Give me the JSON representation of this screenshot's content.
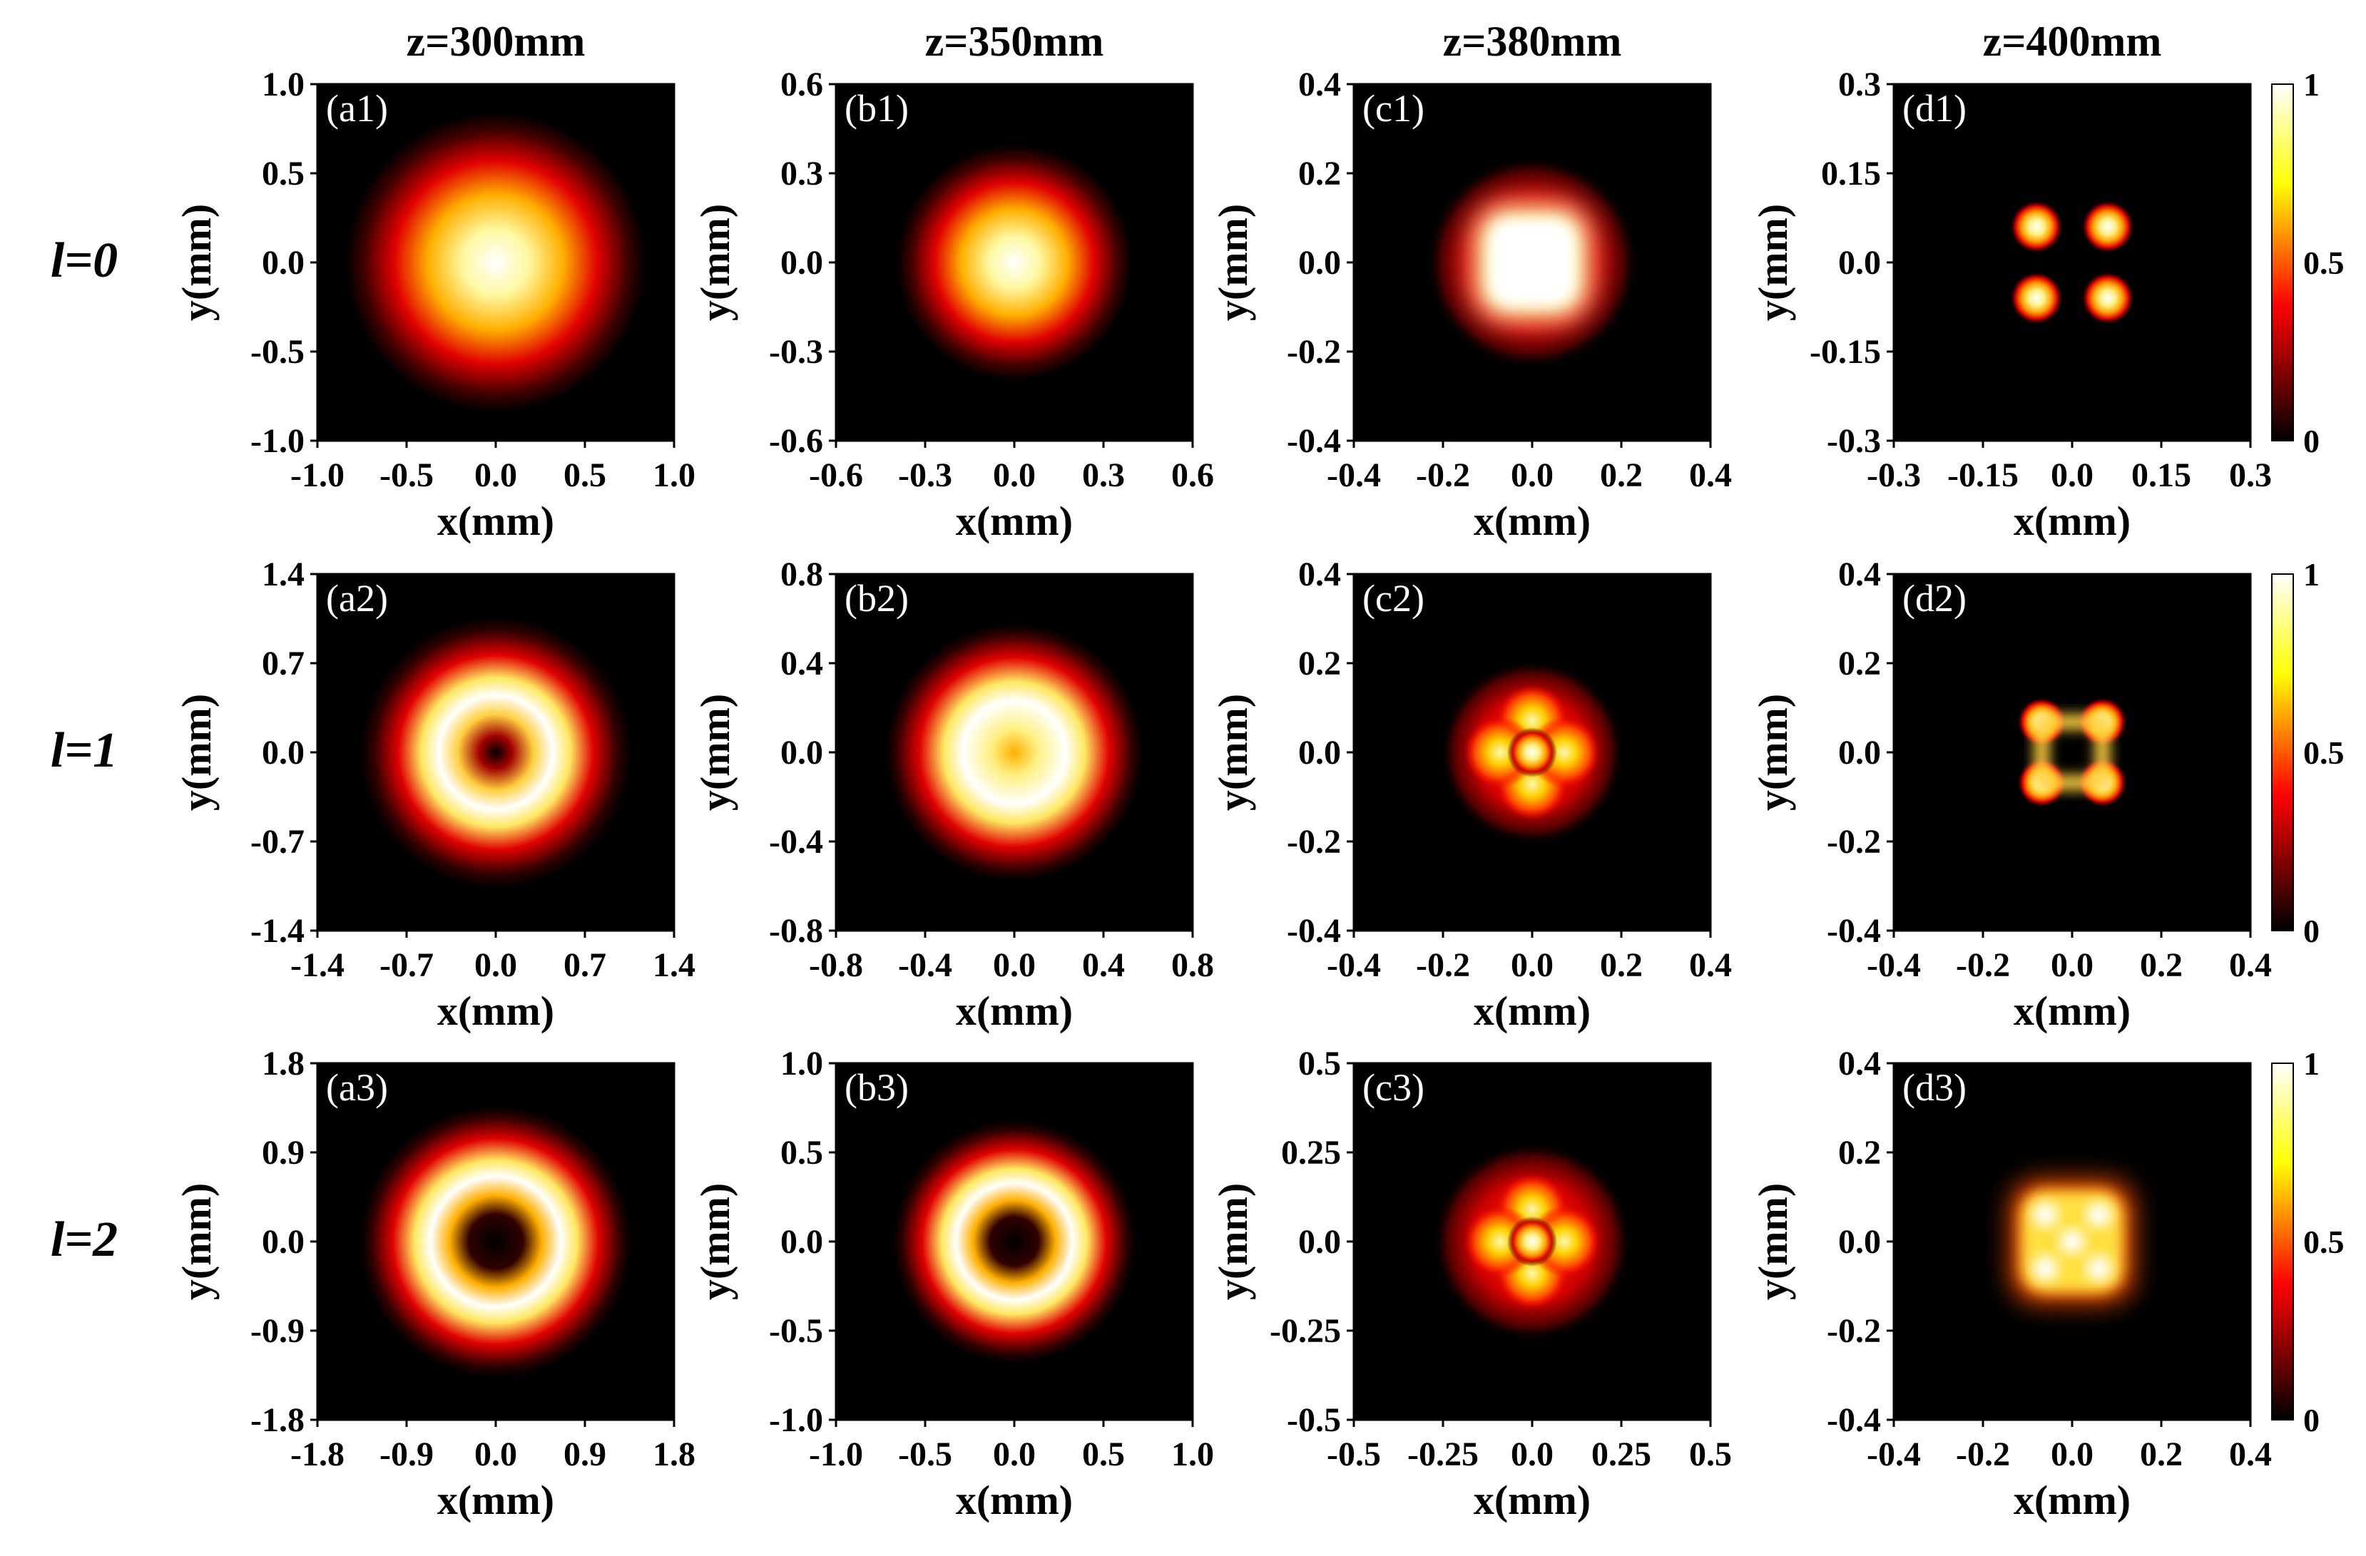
{
  "chart_data": {
    "type": "heatmap",
    "column_titles": [
      "z=300mm",
      "z=350mm",
      "z=380mm",
      "z=400mm"
    ],
    "row_labels": [
      "l=0",
      "l=1",
      "l=2"
    ],
    "xlabel": "x(mm)",
    "ylabel": "y(mm)",
    "colorbar": {
      "ticks": [
        "1",
        "0.5",
        "0"
      ],
      "range": [
        0,
        1
      ],
      "colormap": "hot"
    },
    "colors": {
      "black": "#000000",
      "red": "#e00000",
      "yellow": "#ffff60",
      "white": "#ffffff"
    },
    "panels": [
      {
        "label": "(a1)",
        "row": 0,
        "col": 0,
        "pattern": "gaussian",
        "extent": 1.0,
        "ticks": [
          "-1.0",
          "-0.5",
          "0.0",
          "0.5",
          "1.0"
        ],
        "x_ticks": [
          "-1.0",
          "-0.5",
          "0.0",
          "0.5",
          "1.0"
        ],
        "y_ticks": [
          "1.0",
          "0.5",
          "0.0",
          "-0.5",
          "-1.0"
        ]
      },
      {
        "label": "(b1)",
        "row": 0,
        "col": 1,
        "pattern": "gaussian",
        "extent": 0.6,
        "x_ticks": [
          "-0.6",
          "-0.3",
          "0.0",
          "0.3",
          "0.6"
        ],
        "y_ticks": [
          "0.6",
          "0.3",
          "0.0",
          "-0.3",
          "-0.6"
        ]
      },
      {
        "label": "(c1)",
        "row": 0,
        "col": 2,
        "pattern": "square",
        "extent": 0.4,
        "x_ticks": [
          "-0.4",
          "-0.2",
          "0.0",
          "0.2",
          "0.4"
        ],
        "y_ticks": [
          "0.4",
          "0.2",
          "0.0",
          "-0.2",
          "-0.4"
        ]
      },
      {
        "label": "(d1)",
        "row": 0,
        "col": 3,
        "pattern": "four-spots",
        "extent": 0.3,
        "x_ticks": [
          "-0.3",
          "-0.15",
          "0.0",
          "0.15",
          "0.3"
        ],
        "y_ticks": [
          "0.3",
          "0.15",
          "0.0",
          "-0.15",
          "-0.3"
        ]
      },
      {
        "label": "(a2)",
        "row": 1,
        "col": 0,
        "pattern": "ring",
        "extent": 1.4,
        "x_ticks": [
          "-1.4",
          "-0.7",
          "0.0",
          "0.7",
          "1.4"
        ],
        "y_ticks": [
          "1.4",
          "0.7",
          "0.0",
          "-0.7",
          "-1.4"
        ]
      },
      {
        "label": "(b2)",
        "row": 1,
        "col": 1,
        "pattern": "ring-filled",
        "extent": 0.8,
        "x_ticks": [
          "-0.8",
          "-0.4",
          "0.0",
          "0.4",
          "0.8"
        ],
        "y_ticks": [
          "0.8",
          "0.4",
          "0.0",
          "-0.4",
          "-0.8"
        ]
      },
      {
        "label": "(c2)",
        "row": 1,
        "col": 2,
        "pattern": "cross-blob",
        "extent": 0.4,
        "x_ticks": [
          "-0.4",
          "-0.2",
          "0.0",
          "0.2",
          "0.4"
        ],
        "y_ticks": [
          "0.4",
          "0.2",
          "0.0",
          "-0.2",
          "-0.4"
        ]
      },
      {
        "label": "(d2)",
        "row": 1,
        "col": 3,
        "pattern": "four-spots-close",
        "extent": 0.4,
        "x_ticks": [
          "-0.4",
          "-0.2",
          "0.0",
          "0.2",
          "0.4"
        ],
        "y_ticks": [
          "0.4",
          "0.2",
          "0.0",
          "-0.2",
          "-0.4"
        ]
      },
      {
        "label": "(a3)",
        "row": 2,
        "col": 0,
        "pattern": "ring-wide",
        "extent": 1.8,
        "x_ticks": [
          "-1.8",
          "-0.9",
          "0.0",
          "0.9",
          "1.8"
        ],
        "y_ticks": [
          "1.8",
          "0.9",
          "0.0",
          "-0.9",
          "-1.8"
        ]
      },
      {
        "label": "(b3)",
        "row": 2,
        "col": 1,
        "pattern": "ring-wide",
        "extent": 1.0,
        "x_ticks": [
          "-1.0",
          "-0.5",
          "0.0",
          "0.5",
          "1.0"
        ],
        "y_ticks": [
          "1.0",
          "0.5",
          "0.0",
          "-0.5",
          "-1.0"
        ]
      },
      {
        "label": "(c3)",
        "row": 2,
        "col": 2,
        "pattern": "cross-blob-wide",
        "extent": 0.5,
        "x_ticks": [
          "-0.5",
          "-0.25",
          "0.0",
          "0.25",
          "0.5"
        ],
        "y_ticks": [
          "0.5",
          "0.25",
          "0.0",
          "-0.25",
          "-0.5"
        ]
      },
      {
        "label": "(d3)",
        "row": 2,
        "col": 3,
        "pattern": "square-lattice",
        "extent": 0.4,
        "x_ticks": [
          "-0.4",
          "-0.2",
          "0.0",
          "0.2",
          "0.4"
        ],
        "y_ticks": [
          "0.4",
          "0.2",
          "0.0",
          "-0.2",
          "-0.4"
        ]
      }
    ]
  }
}
